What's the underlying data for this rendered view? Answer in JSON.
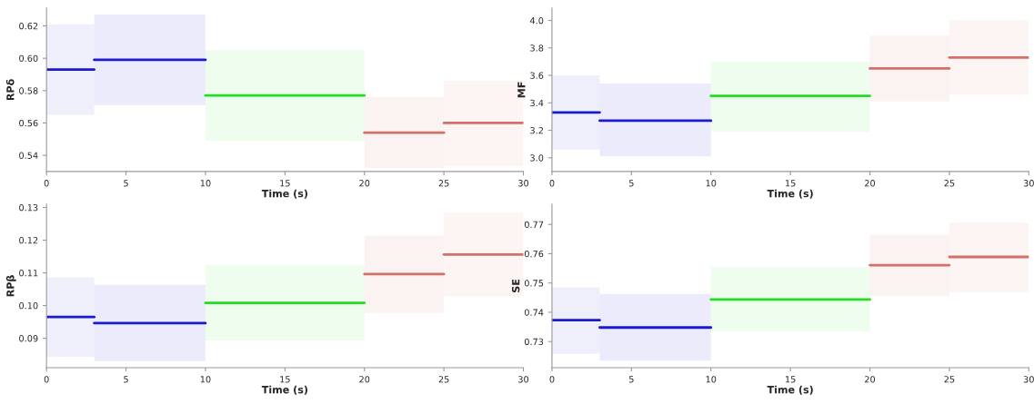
{
  "chart_data": [
    {
      "type": "line",
      "xlabel": "Time (s)",
      "ylabel": "RPδ",
      "xlim": [
        0,
        30
      ],
      "xticks": [
        0,
        5,
        10,
        15,
        20,
        25,
        30
      ],
      "ylim": [
        0.53,
        0.631
      ],
      "yticks": [
        0.54,
        0.56,
        0.58,
        {
          "value": 0.6,
          "label": "0.60"
        },
        0.62
      ],
      "grid": false,
      "legend": false,
      "series": [
        {
          "color": "#1a1acc",
          "x": [
            0,
            3
          ],
          "values": [
            0.593,
            0.593
          ],
          "lower": [
            0.565,
            0.565
          ],
          "upper": [
            0.621,
            0.621
          ]
        },
        {
          "color": "#1b1bcd",
          "x": [
            3,
            10
          ],
          "values": [
            0.599,
            0.599
          ],
          "lower": [
            0.571,
            0.571
          ],
          "upper": [
            0.627,
            0.627
          ]
        },
        {
          "color": "#22dd22",
          "x": [
            10,
            20
          ],
          "values": [
            0.577,
            0.577
          ],
          "lower": [
            0.549,
            0.549
          ],
          "upper": [
            0.605,
            0.605
          ]
        },
        {
          "color": "#d4706a",
          "x": [
            20,
            25
          ],
          "values": [
            0.554,
            0.554
          ],
          "lower": [
            0.532,
            0.532
          ],
          "upper": [
            0.576,
            0.576
          ]
        },
        {
          "color": "#d4706a",
          "x": [
            25,
            30
          ],
          "values": [
            0.56,
            0.56
          ],
          "lower": [
            0.533,
            0.533
          ],
          "upper": [
            0.586,
            0.586
          ]
        }
      ]
    },
    {
      "type": "line",
      "xlabel": "Time (s)",
      "ylabel": "MF",
      "xlim": [
        0,
        30
      ],
      "xticks": [
        0,
        5,
        10,
        15,
        20,
        25,
        30
      ],
      "ylim": [
        2.9,
        4.09
      ],
      "yticks": [
        {
          "value": 3.0,
          "label": "3.0"
        },
        3.2,
        3.4,
        3.6,
        3.8,
        {
          "value": 4.0,
          "label": "4.0"
        }
      ],
      "grid": false,
      "legend": false,
      "series": [
        {
          "color": "#1a1acc",
          "x": [
            0,
            3
          ],
          "values": [
            3.33,
            3.33
          ],
          "lower": [
            3.06,
            3.06
          ],
          "upper": [
            3.6,
            3.6
          ]
        },
        {
          "color": "#1b1bcd",
          "x": [
            3,
            10
          ],
          "values": [
            3.27,
            3.27
          ],
          "lower": [
            3.01,
            3.01
          ],
          "upper": [
            3.54,
            3.54
          ]
        },
        {
          "color": "#22dd22",
          "x": [
            10,
            20
          ],
          "values": [
            3.45,
            3.45
          ],
          "lower": [
            3.19,
            3.19
          ],
          "upper": [
            3.7,
            3.7
          ]
        },
        {
          "color": "#d4706a",
          "x": [
            20,
            25
          ],
          "values": [
            3.65,
            3.65
          ],
          "lower": [
            3.41,
            3.41
          ],
          "upper": [
            3.89,
            3.89
          ]
        },
        {
          "color": "#d4706a",
          "x": [
            25,
            30
          ],
          "values": [
            3.73,
            3.73
          ],
          "lower": [
            3.46,
            3.46
          ],
          "upper": [
            4.0,
            4.0
          ]
        }
      ]
    },
    {
      "type": "line",
      "xlabel": "Time (s)",
      "ylabel": "RPβ",
      "xlim": [
        0,
        30
      ],
      "xticks": [
        0,
        5,
        10,
        15,
        20,
        25,
        30
      ],
      "ylim": [
        0.081,
        0.131
      ],
      "yticks": [
        0.09,
        {
          "value": 0.1,
          "label": "0.10"
        },
        0.11,
        0.12,
        0.13
      ],
      "grid": false,
      "legend": false,
      "series": [
        {
          "color": "#1a1acc",
          "x": [
            0,
            3
          ],
          "values": [
            0.0965,
            0.0965
          ],
          "lower": [
            0.0843,
            0.0843
          ],
          "upper": [
            0.1086,
            0.1086
          ]
        },
        {
          "color": "#1b1bcd",
          "x": [
            3,
            10
          ],
          "values": [
            0.0946,
            0.0946
          ],
          "lower": [
            0.083,
            0.083
          ],
          "upper": [
            0.1063,
            0.1063
          ]
        },
        {
          "color": "#22dd22",
          "x": [
            10,
            20
          ],
          "values": [
            0.1008,
            0.1008
          ],
          "lower": [
            0.0893,
            0.0893
          ],
          "upper": [
            0.1123,
            0.1123
          ]
        },
        {
          "color": "#d4706a",
          "x": [
            20,
            25
          ],
          "values": [
            0.1096,
            0.1096
          ],
          "lower": [
            0.0977,
            0.0977
          ],
          "upper": [
            0.1214,
            0.1214
          ]
        },
        {
          "color": "#d4706a",
          "x": [
            25,
            30
          ],
          "values": [
            0.1156,
            0.1156
          ],
          "lower": [
            0.1028,
            0.1028
          ],
          "upper": [
            0.1284,
            0.1284
          ]
        }
      ]
    },
    {
      "type": "line",
      "xlabel": "Time (s)",
      "ylabel": "SE",
      "xlim": [
        0,
        30
      ],
      "xticks": [
        0,
        5,
        10,
        15,
        20,
        25,
        30
      ],
      "ylim": [
        0.7211,
        0.7769
      ],
      "yticks": [
        0.73,
        0.74,
        0.75,
        0.76,
        0.77
      ],
      "grid": false,
      "legend": false,
      "series": [
        {
          "color": "#1a1acc",
          "x": [
            0,
            3
          ],
          "values": [
            0.7373,
            0.7373
          ],
          "lower": [
            0.7258,
            0.7258
          ],
          "upper": [
            0.7485,
            0.7485
          ]
        },
        {
          "color": "#1b1bcd",
          "x": [
            3,
            10
          ],
          "values": [
            0.7348,
            0.7348
          ],
          "lower": [
            0.7235,
            0.7235
          ],
          "upper": [
            0.7463,
            0.7463
          ]
        },
        {
          "color": "#22dd22",
          "x": [
            10,
            20
          ],
          "values": [
            0.7444,
            0.7444
          ],
          "lower": [
            0.7335,
            0.7335
          ],
          "upper": [
            0.7553,
            0.7553
          ]
        },
        {
          "color": "#d4706a",
          "x": [
            20,
            25
          ],
          "values": [
            0.7561,
            0.7561
          ],
          "lower": [
            0.7456,
            0.7456
          ],
          "upper": [
            0.7665,
            0.7665
          ]
        },
        {
          "color": "#d4706a",
          "x": [
            25,
            30
          ],
          "values": [
            0.7589,
            0.7589
          ],
          "lower": [
            0.7469,
            0.7469
          ],
          "upper": [
            0.7707,
            0.7707
          ]
        }
      ]
    }
  ]
}
